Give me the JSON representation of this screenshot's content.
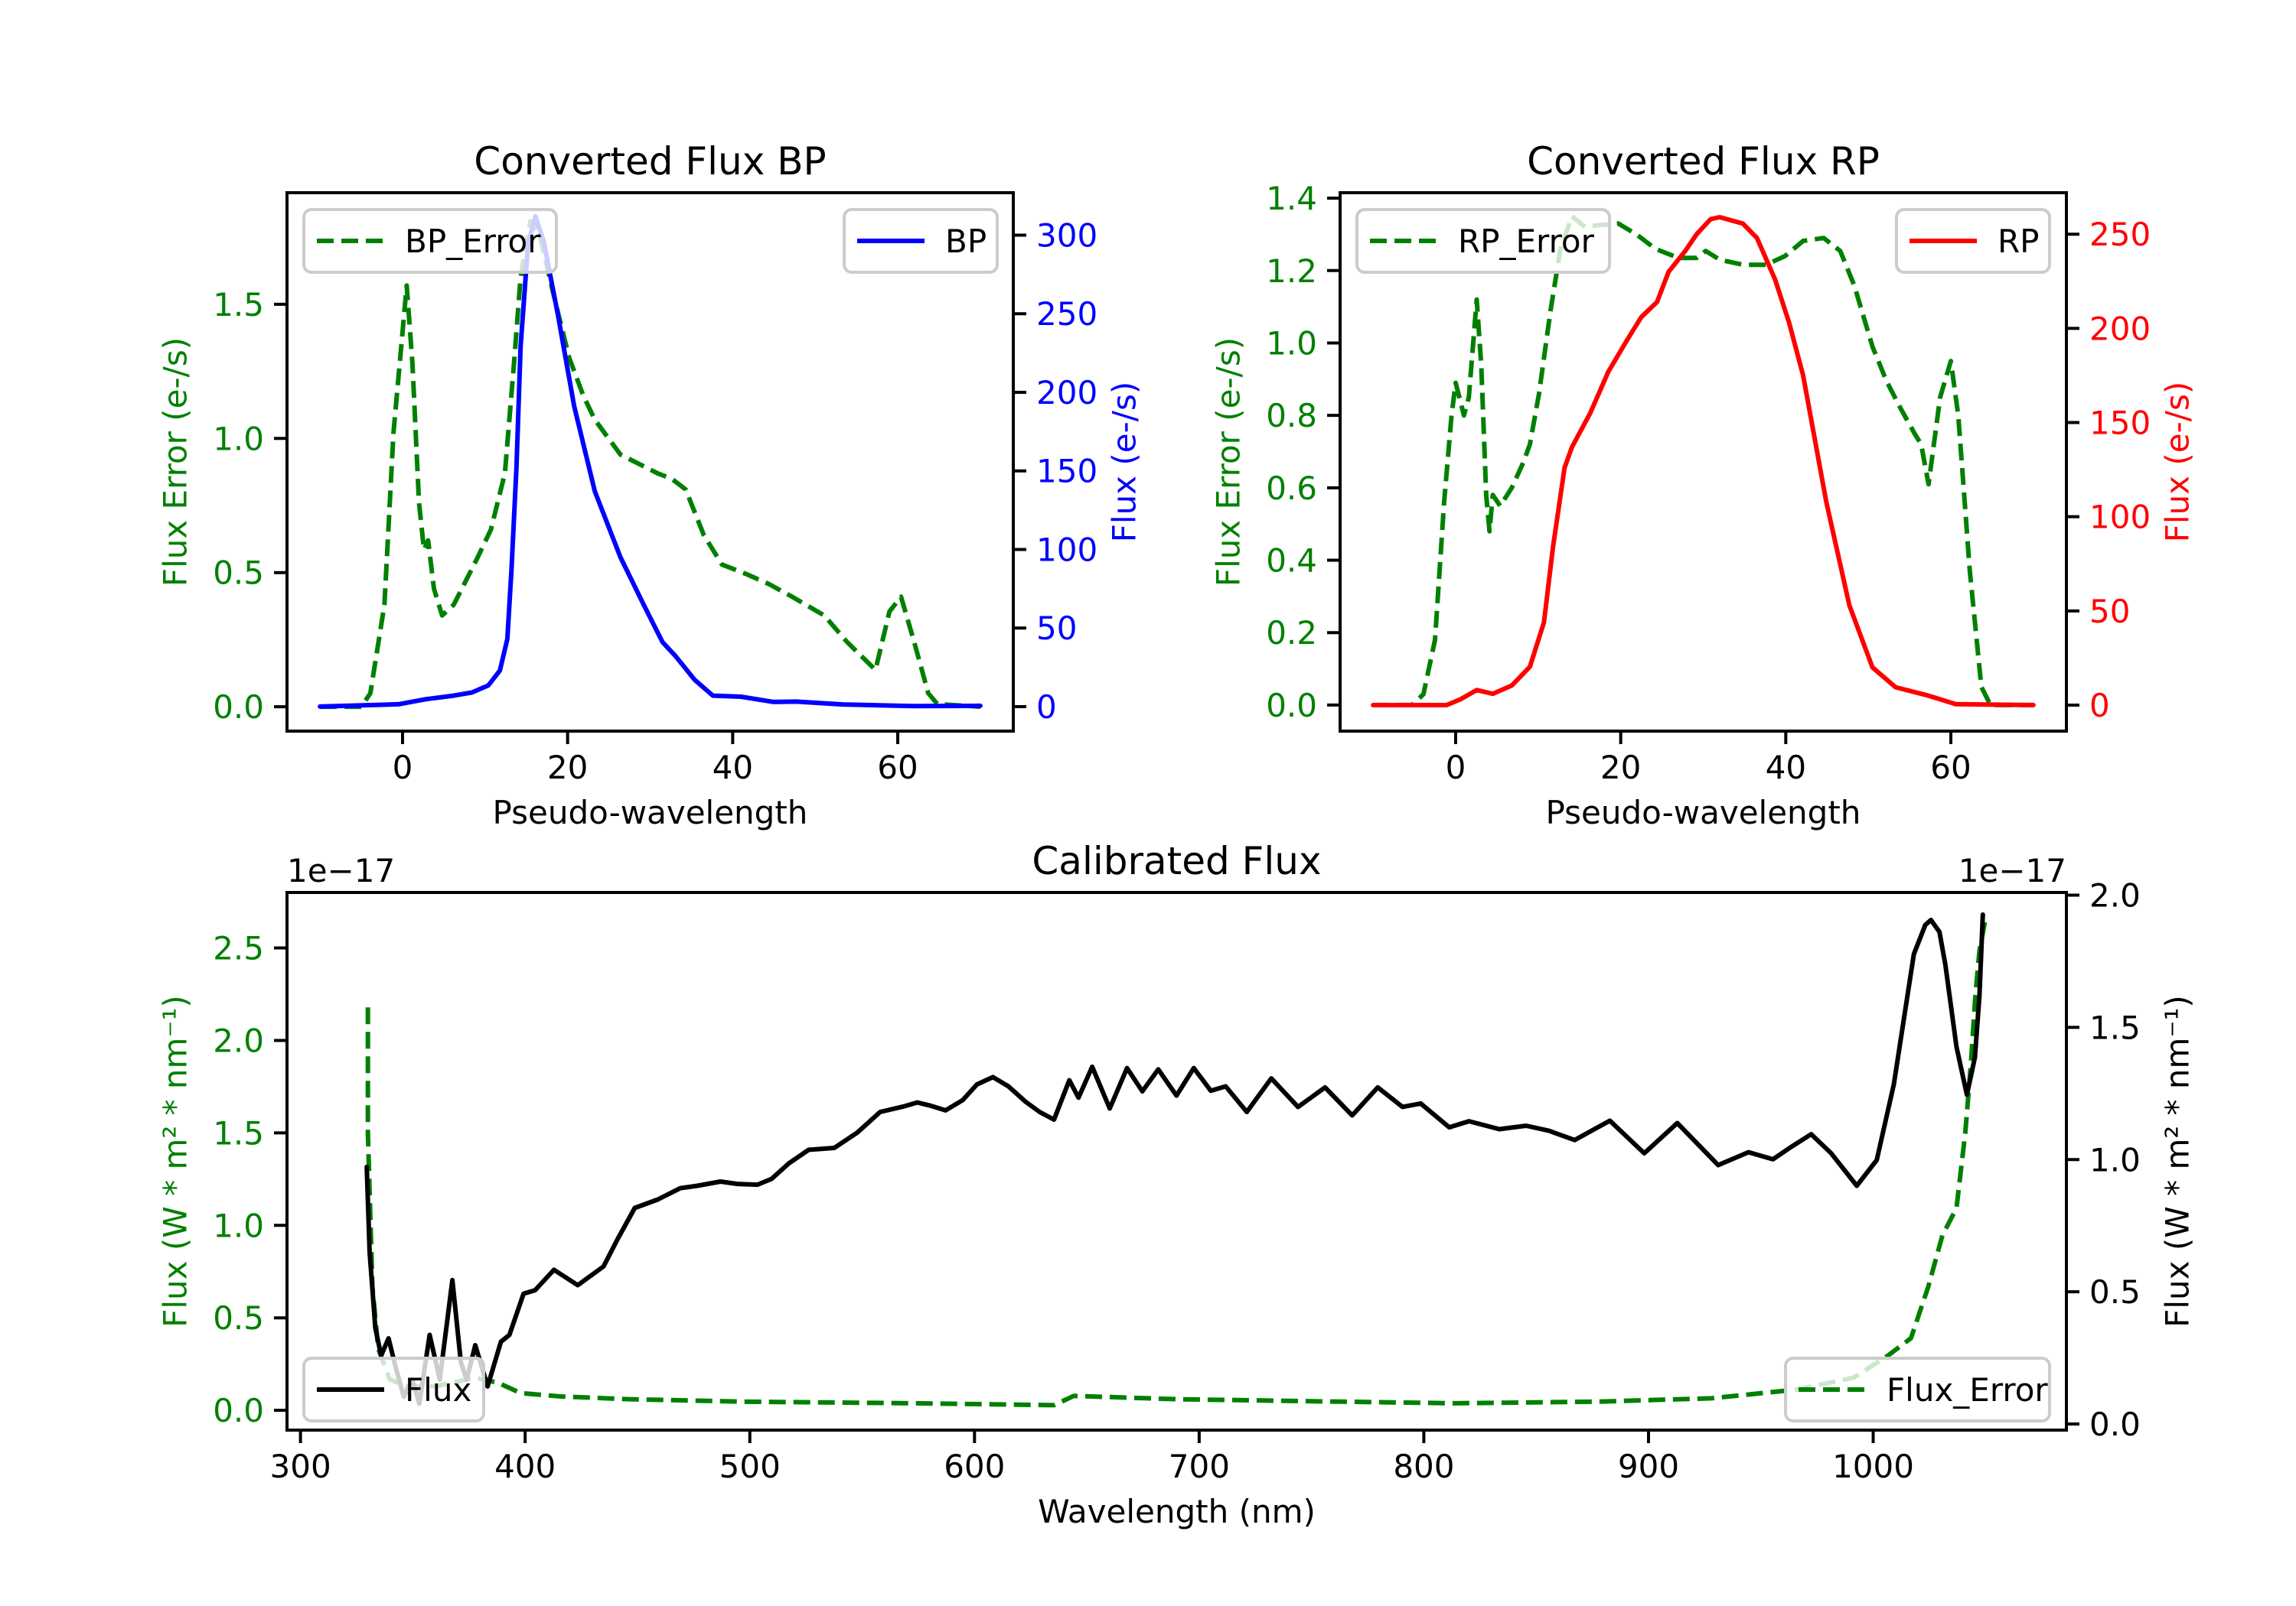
{
  "figure": {
    "background": "#ffffff"
  },
  "colors": {
    "error": "#008000",
    "bp": "#0000ff",
    "rp": "#ff0000",
    "flux": "#000000",
    "axis": "#000000",
    "legend_border": "#cccccc"
  },
  "chart_data": [
    {
      "id": "bp",
      "type": "line",
      "title": "Converted Flux BP",
      "xlabel": "Pseudo-wavelength",
      "xlim": [
        -14,
        74
      ],
      "xticks": [
        0,
        20,
        40,
        60
      ],
      "left_axis": {
        "label": "Flux Error (e-/s)",
        "color": "#008000",
        "ylim": [
          -0.091,
          1.916
        ],
        "ticks": [
          0.0,
          0.5,
          1.0,
          1.5
        ],
        "tick_format": 1
      },
      "right_axis": {
        "label": "Flux (e-/s)",
        "color": "#0000ff",
        "ylim": [
          -15.6,
          327
        ],
        "ticks": [
          0,
          50,
          100,
          150,
          200,
          250,
          300
        ],
        "tick_format": 0
      },
      "series": [
        {
          "name": "BP_Error",
          "axis": "left",
          "style": "dashed",
          "color": "#008000",
          "legend": "upper-left",
          "x": [
            -10,
            -5.0,
            -3.9,
            -2.2,
            -1.1,
            0.5,
            1.2,
            2.0,
            2.6,
            3.1,
            3.8,
            4.8,
            6.2,
            9.0,
            10.7,
            12.4,
            13.5,
            14.3,
            15.5,
            16.6,
            18.5,
            20.2,
            21.9,
            23.3,
            26.4,
            30.9,
            32.6,
            34.3,
            36.5,
            38.7,
            41.6,
            44.4,
            47.2,
            51.1,
            53.9,
            57.3,
            59.0,
            60.4,
            62.0,
            63.7,
            64.8,
            70
          ],
          "y": [
            0.0,
            0.0,
            0.05,
            0.38,
            1.02,
            1.57,
            1.28,
            0.76,
            0.585,
            0.62,
            0.44,
            0.34,
            0.38,
            0.55,
            0.66,
            0.87,
            1.28,
            1.6,
            1.81,
            1.76,
            1.51,
            1.3,
            1.16,
            1.07,
            0.94,
            0.87,
            0.85,
            0.81,
            0.64,
            0.53,
            0.495,
            0.457,
            0.41,
            0.34,
            0.24,
            0.137,
            0.355,
            0.41,
            0.24,
            0.05,
            0.01,
            0.0
          ]
        },
        {
          "name": "BP",
          "axis": "right",
          "style": "solid",
          "color": "#0000ff",
          "legend": "upper-right",
          "x": [
            -10,
            -0.5,
            2.8,
            6.2,
            8.4,
            10.4,
            11.8,
            12.7,
            13.2,
            13.8,
            14.3,
            15.2,
            16.1,
            17.1,
            18.8,
            20.8,
            23.3,
            26.4,
            29.2,
            31.5,
            33.1,
            35.4,
            37.6,
            41.0,
            44.9,
            47.7,
            53.3,
            61.8,
            70
          ],
          "y": [
            0,
            1.5,
            4.7,
            7,
            9,
            13.5,
            23,
            43,
            87,
            152,
            229,
            294,
            312,
            296,
            250,
            191,
            137,
            95,
            65,
            41,
            32,
            17,
            7,
            6.3,
            3,
            3.2,
            1.4,
            0.3,
            0.5
          ]
        }
      ]
    },
    {
      "id": "rp",
      "type": "line",
      "title": "Converted Flux RP",
      "xlabel": "Pseudo-wavelength",
      "xlim": [
        -14,
        74
      ],
      "xticks": [
        0,
        20,
        40,
        60
      ],
      "left_axis": {
        "label": "Flux Error (e-/s)",
        "color": "#008000",
        "ylim": [
          -0.072,
          1.415
        ],
        "ticks": [
          0.0,
          0.2,
          0.4,
          0.6,
          0.8,
          1.0,
          1.2,
          1.4
        ],
        "tick_format": 1
      },
      "right_axis": {
        "label": "Flux (e-/s)",
        "color": "#ff0000",
        "ylim": [
          -13.8,
          272
        ],
        "ticks": [
          0,
          50,
          100,
          150,
          200,
          250
        ],
        "tick_format": 0
      },
      "series": [
        {
          "name": "RP_Error",
          "axis": "left",
          "style": "dashed",
          "color": "#008000",
          "legend": "upper-left",
          "x": [
            -10,
            -5.3,
            -3.9,
            -2.5,
            -1.4,
            -0.5,
            0.0,
            1.0,
            1.6,
            2.55,
            3.1,
            3.7,
            4.1,
            4.5,
            5.4,
            6.8,
            8.2,
            9.0,
            10.1,
            11.5,
            12.7,
            14.1,
            15.7,
            17.1,
            19.7,
            21.9,
            24.2,
            27.0,
            29.2,
            30.3,
            32.0,
            34.8,
            37.6,
            39.9,
            42.1,
            44.6,
            46.6,
            48.3,
            50.5,
            52.2,
            53.9,
            55.6,
            56.4,
            57.3,
            58.7,
            60.0,
            60.9,
            62.3,
            63.7,
            64.8,
            70
          ],
          "y": [
            0.0,
            0.0,
            0.03,
            0.18,
            0.56,
            0.8,
            0.89,
            0.8,
            0.85,
            1.12,
            0.94,
            0.58,
            0.48,
            0.58,
            0.55,
            0.6,
            0.67,
            0.72,
            0.86,
            1.09,
            1.26,
            1.35,
            1.32,
            1.325,
            1.33,
            1.3,
            1.26,
            1.235,
            1.235,
            1.254,
            1.23,
            1.216,
            1.216,
            1.24,
            1.282,
            1.29,
            1.254,
            1.159,
            0.99,
            0.895,
            0.82,
            0.75,
            0.72,
            0.61,
            0.85,
            0.95,
            0.8,
            0.37,
            0.05,
            0.0,
            0.0
          ]
        },
        {
          "name": "RP",
          "axis": "right",
          "style": "solid",
          "color": "#ff0000",
          "legend": "upper-right",
          "x": [
            -10,
            -1.1,
            0.6,
            2.55,
            4.5,
            6.8,
            9.0,
            10.7,
            11.8,
            13.2,
            14.1,
            16.3,
            18.5,
            20.8,
            22.5,
            24.4,
            25.8,
            27.8,
            29.2,
            30.9,
            32.0,
            34.8,
            36.5,
            38.7,
            40.4,
            42.1,
            44.9,
            47.7,
            50.5,
            53.3,
            57.3,
            60.6,
            70
          ],
          "y": [
            0,
            0,
            3.1,
            8,
            6,
            10.4,
            20.4,
            44,
            84,
            126,
            137,
            155,
            177,
            194,
            206,
            214,
            230,
            241,
            250,
            258,
            259,
            255.6,
            248,
            226,
            203,
            175,
            108,
            53,
            20,
            9.5,
            5,
            0.5,
            0
          ]
        }
      ]
    },
    {
      "id": "calibrated",
      "type": "line",
      "title": "Calibrated Flux",
      "xlabel": "Wavelength (nm)",
      "xlim": [
        294,
        1086
      ],
      "xticks": [
        300,
        400,
        500,
        600,
        700,
        800,
        900,
        1000
      ],
      "left_axis": {
        "label": "Flux (W * m² * nm⁻¹)",
        "color": "#008000",
        "offset_text": "1e−17",
        "ylim": [
          -0.107,
          2.8
        ],
        "ticks": [
          0.0,
          0.5,
          1.0,
          1.5,
          2.0,
          2.5
        ],
        "tick_format": 1
      },
      "right_axis": {
        "label": "Flux (W * m² * nm⁻¹)",
        "color": "#000000",
        "offset_text": "1e−17",
        "ylim": [
          -0.023,
          2.01
        ],
        "ticks": [
          0.0,
          0.5,
          1.0,
          1.5,
          2.0
        ],
        "tick_format": 1
      },
      "series": [
        {
          "name": "Flux_Error",
          "axis": "left",
          "style": "dashed",
          "color": "#008000",
          "legend": "lower-right",
          "x": [
            330.0,
            330.0,
            332,
            334.6,
            339.7,
            347.3,
            360,
            377.8,
            387.9,
            398,
            415.8,
            446.3,
            497.0,
            573.2,
            635.4,
            644.2,
            690.0,
            763,
            813.8,
            877.3,
            928,
            966,
            991.4,
            1006.7,
            1016.8,
            1024.5,
            1030.8,
            1037.1,
            1041.0,
            1043.5,
            1045.5,
            1047.3,
            1050
          ],
          "y": [
            2.179,
            1.5,
            0.668,
            0.334,
            0.167,
            0.13,
            0.13,
            0.176,
            0.149,
            0.093,
            0.075,
            0.06,
            0.047,
            0.038,
            0.028,
            0.078,
            0.06,
            0.047,
            0.038,
            0.047,
            0.065,
            0.112,
            0.177,
            0.297,
            0.39,
            0.668,
            0.946,
            1.094,
            1.502,
            1.873,
            2.244,
            2.485,
            2.66
          ]
        },
        {
          "name": "Flux",
          "axis": "right",
          "style": "solid",
          "color": "#000000",
          "legend": "lower-left",
          "x": [
            329.5,
            330.8,
            333.3,
            335.9,
            339.2,
            342.2,
            346.0,
            349.8,
            352.9,
            357.5,
            362.0,
            367.6,
            371.4,
            374.0,
            377.8,
            383.3,
            389.2,
            393.0,
            399.3,
            404.4,
            412.8,
            423.4,
            434.9,
            441.2,
            448.8,
            459.0,
            469.1,
            476.7,
            486.9,
            494.5,
            503.4,
            509.7,
            517.3,
            526.2,
            537.6,
            547.8,
            558.0,
            568.1,
            574.5,
            580.8,
            587.1,
            594.8,
            601.1,
            608.2,
            615.1,
            622.7,
            629.0,
            635.4,
            642.2,
            646.3,
            652.4,
            660.2,
            667.9,
            674.7,
            681.8,
            689.9,
            697.6,
            705.2,
            711.8,
            721.2,
            732.1,
            744.0,
            756.0,
            768.1,
            779.5,
            790.5,
            798.6,
            811.3,
            820.1,
            833.6,
            845.5,
            855.7,
            867.1,
            882.8,
            898.1,
            912.8,
            931.0,
            944.5,
            955.4,
            963.5,
            972.4,
            981.3,
            992.7,
            1001.6,
            1009.2,
            1018.1,
            1023.2,
            1025.7,
            1029.5,
            1032.1,
            1037.1,
            1041.7,
            1045.3,
            1047.3,
            1048.8
          ],
          "y": [
            0.972,
            0.648,
            0.363,
            0.259,
            0.324,
            0.22,
            0.103,
            0.168,
            0.077,
            0.337,
            0.168,
            0.544,
            0.233,
            0.168,
            0.298,
            0.142,
            0.311,
            0.337,
            0.493,
            0.506,
            0.583,
            0.525,
            0.596,
            0.7,
            0.817,
            0.849,
            0.892,
            0.901,
            0.917,
            0.908,
            0.905,
            0.927,
            0.985,
            1.037,
            1.044,
            1.102,
            1.18,
            1.2,
            1.216,
            1.203,
            1.186,
            1.225,
            1.284,
            1.312,
            1.277,
            1.219,
            1.18,
            1.151,
            1.3,
            1.234,
            1.351,
            1.193,
            1.346,
            1.258,
            1.341,
            1.242,
            1.346,
            1.26,
            1.277,
            1.18,
            1.307,
            1.199,
            1.273,
            1.167,
            1.273,
            1.199,
            1.212,
            1.122,
            1.145,
            1.115,
            1.128,
            1.109,
            1.074,
            1.147,
            1.024,
            1.138,
            0.979,
            1.028,
            1.001,
            1.048,
            1.096,
            1.024,
            0.901,
            0.998,
            1.284,
            1.777,
            1.887,
            1.906,
            1.861,
            1.738,
            1.426,
            1.245,
            1.387,
            1.621,
            1.926
          ]
        }
      ]
    }
  ]
}
